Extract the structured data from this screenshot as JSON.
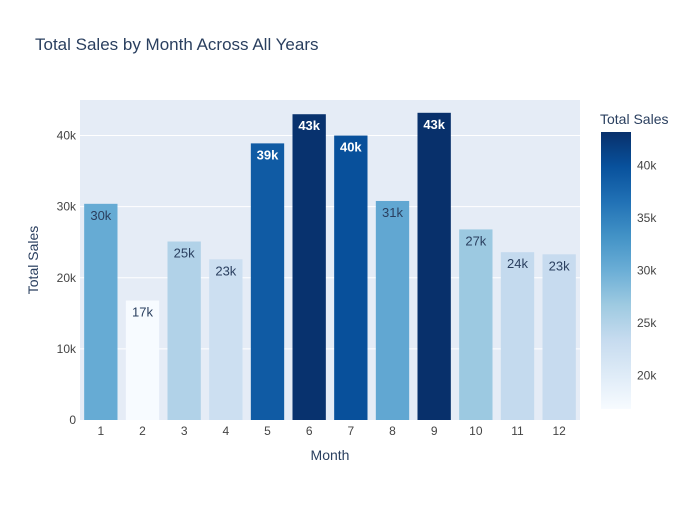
{
  "chart_data": {
    "type": "bar",
    "title": "Total Sales by Month Across All Years",
    "xlabel": "Month",
    "ylabel": "Total Sales",
    "categories": [
      "1",
      "2",
      "3",
      "4",
      "5",
      "6",
      "7",
      "8",
      "9",
      "10",
      "11",
      "12"
    ],
    "values": [
      30400,
      16800,
      25100,
      22600,
      38900,
      43000,
      40000,
      30800,
      43200,
      26800,
      23600,
      23300
    ],
    "data_labels": [
      "30k",
      "17k",
      "25k",
      "23k",
      "39k",
      "43k",
      "40k",
      "31k",
      "43k",
      "27k",
      "24k",
      "23k"
    ],
    "ylim": [
      0,
      45000
    ],
    "y_ticks": [
      0,
      10000,
      20000,
      30000,
      40000
    ],
    "y_tick_labels": [
      "0",
      "10k",
      "20k",
      "30k",
      "40k"
    ],
    "grid": true,
    "colorscale": "Blues",
    "colorbar": {
      "title": "Total Sales",
      "range": [
        16800,
        43200
      ],
      "ticks": [
        20000,
        25000,
        30000,
        35000,
        40000
      ],
      "tick_labels": [
        "20k",
        "25k",
        "30k",
        "35k",
        "40k"
      ]
    },
    "colors": {
      "plot_bg": "#e5ecf6",
      "grid": "#ffffff",
      "text": "#2a3f5f",
      "tick_text": "#444444"
    }
  }
}
